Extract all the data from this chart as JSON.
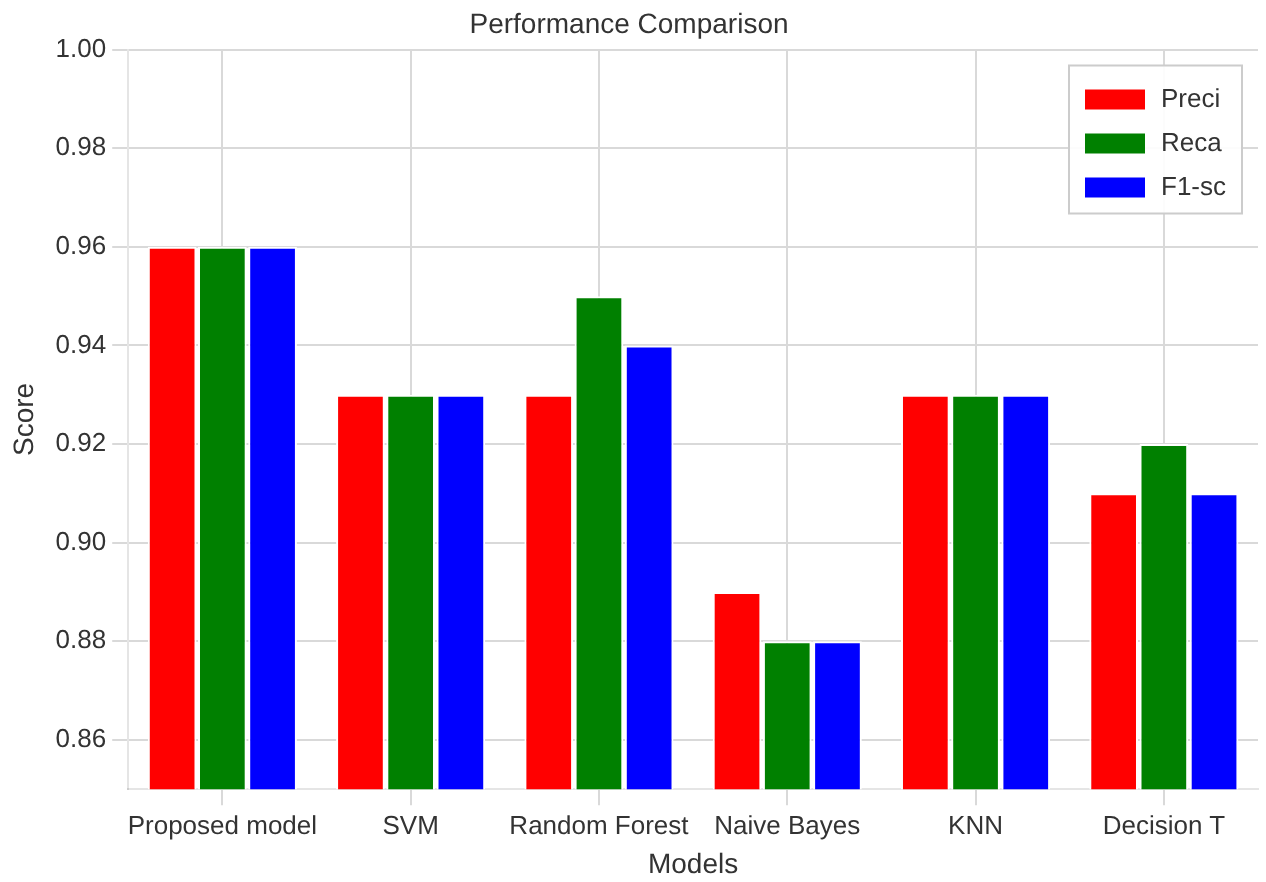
{
  "chart_data": {
    "type": "bar",
    "title": "Performance Comparison",
    "xlabel": "Models",
    "ylabel": "Score",
    "categories": [
      "Proposed model",
      "SVM",
      "Random Forest",
      "Naive Bayes",
      "KNN",
      "Decision T"
    ],
    "series": [
      {
        "name": "Preci",
        "color": "#ff0000",
        "values": [
          0.96,
          0.93,
          0.93,
          0.89,
          0.93,
          0.91
        ]
      },
      {
        "name": "Reca",
        "color": "#008000",
        "values": [
          0.96,
          0.93,
          0.95,
          0.88,
          0.93,
          0.92
        ]
      },
      {
        "name": "F1-sc",
        "color": "#0000ff",
        "values": [
          0.96,
          0.93,
          0.94,
          0.88,
          0.93,
          0.91
        ]
      }
    ],
    "ylim": [
      0.85,
      1.0
    ],
    "yticks": [
      0.86,
      0.88,
      {
        "value": 0.9,
        "label": "0.90"
      },
      0.92,
      0.94,
      0.96,
      0.98,
      {
        "value": 1.0,
        "label": "1.00"
      }
    ],
    "grid": true,
    "legend": "top right"
  }
}
